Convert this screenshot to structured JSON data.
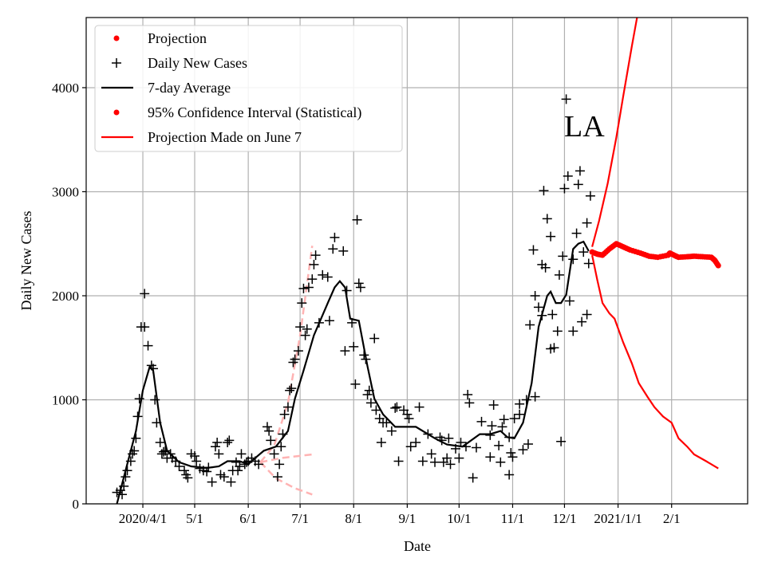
{
  "chart_data": {
    "type": "line",
    "title": "",
    "annotation": "LA",
    "xlabel": "Date",
    "ylabel": "Daily New Cases",
    "x_units": "days since 2020/4/1",
    "xlim": [
      -32.8,
      350
    ],
    "ylim": [
      0,
      4674
    ],
    "grid": true,
    "legend_placement": "top-left",
    "x_ticks": [
      {
        "value": 0,
        "label": "2020/4/1"
      },
      {
        "value": 30,
        "label": "5/1"
      },
      {
        "value": 61,
        "label": "6/1"
      },
      {
        "value": 91,
        "label": "7/1"
      },
      {
        "value": 122,
        "label": "8/1"
      },
      {
        "value": 153,
        "label": "9/1"
      },
      {
        "value": 183,
        "label": "10/1"
      },
      {
        "value": 214,
        "label": "11/1"
      },
      {
        "value": 244,
        "label": "12/1"
      },
      {
        "value": 275,
        "label": "2021/1/1"
      },
      {
        "value": 306,
        "label": "2/1"
      }
    ],
    "y_ticks": [
      {
        "value": 0,
        "label": "0"
      },
      {
        "value": 1000,
        "label": "1000"
      },
      {
        "value": 2000,
        "label": "2000"
      },
      {
        "value": 3000,
        "label": "3000"
      },
      {
        "value": 4000,
        "label": "4000"
      }
    ],
    "legend": [
      {
        "label": "Projection",
        "kind": "dot",
        "color": "#ff0000"
      },
      {
        "label": "Daily New Cases",
        "kind": "plus",
        "color": "#000000"
      },
      {
        "label": "7-day Average",
        "kind": "line",
        "color": "#000000"
      },
      {
        "label": "95% Confidence Interval (Statistical)",
        "kind": "dot",
        "color": "#ff0000"
      },
      {
        "label": "Projection Made on June 7",
        "kind": "line",
        "color": "#ff0000"
      }
    ],
    "colors": {
      "cases": "#000000",
      "average": "#000000",
      "projection": "#ff0000",
      "june7": "#ffb3b3",
      "grid": "#b0b0b0"
    },
    "daily_new_cases": [
      [
        -15,
        110
      ],
      [
        -13,
        130
      ],
      [
        -12,
        90
      ],
      [
        -11,
        170
      ],
      [
        -10,
        260
      ],
      [
        -9,
        320
      ],
      [
        -7,
        410
      ],
      [
        -6,
        480
      ],
      [
        -5,
        510
      ],
      [
        -4,
        630
      ],
      [
        -3,
        840
      ],
      [
        -2,
        1010
      ],
      [
        -1,
        1700
      ],
      [
        1,
        1700
      ],
      [
        1,
        2020
      ],
      [
        3,
        1520
      ],
      [
        5,
        1330
      ],
      [
        6,
        1300
      ],
      [
        7,
        1000
      ],
      [
        8,
        780
      ],
      [
        10,
        590
      ],
      [
        11,
        480
      ],
      [
        12,
        500
      ],
      [
        13,
        510
      ],
      [
        14,
        440
      ],
      [
        16,
        480
      ],
      [
        17,
        440
      ],
      [
        19,
        410
      ],
      [
        21,
        360
      ],
      [
        24,
        320
      ],
      [
        25,
        280
      ],
      [
        26,
        250
      ],
      [
        28,
        480
      ],
      [
        30,
        460
      ],
      [
        31,
        410
      ],
      [
        33,
        340
      ],
      [
        35,
        320
      ],
      [
        37,
        310
      ],
      [
        38,
        350
      ],
      [
        40,
        210
      ],
      [
        42,
        550
      ],
      [
        43,
        590
      ],
      [
        44,
        480
      ],
      [
        45,
        280
      ],
      [
        47,
        260
      ],
      [
        49,
        590
      ],
      [
        50,
        610
      ],
      [
        51,
        210
      ],
      [
        52,
        320
      ],
      [
        54,
        400
      ],
      [
        55,
        320
      ],
      [
        56,
        360
      ],
      [
        57,
        480
      ],
      [
        59,
        380
      ],
      [
        60,
        400
      ],
      [
        61,
        410
      ],
      [
        63,
        440
      ],
      [
        65,
        410
      ],
      [
        67,
        380
      ],
      [
        72,
        740
      ],
      [
        73,
        700
      ],
      [
        74,
        610
      ],
      [
        76,
        480
      ],
      [
        78,
        260
      ],
      [
        79,
        380
      ],
      [
        80,
        550
      ],
      [
        81,
        670
      ],
      [
        82,
        860
      ],
      [
        84,
        930
      ],
      [
        85,
        1090
      ],
      [
        86,
        1110
      ],
      [
        87,
        1360
      ],
      [
        88,
        1390
      ],
      [
        90,
        1470
      ],
      [
        91,
        1700
      ],
      [
        92,
        1930
      ],
      [
        93,
        2070
      ],
      [
        94,
        1620
      ],
      [
        95,
        1680
      ],
      [
        96,
        2080
      ],
      [
        98,
        2160
      ],
      [
        99,
        2300
      ],
      [
        100,
        2390
      ],
      [
        102,
        1740
      ],
      [
        104,
        2200
      ],
      [
        107,
        2180
      ],
      [
        108,
        1760
      ],
      [
        110,
        2450
      ],
      [
        111,
        2560
      ],
      [
        116,
        2430
      ],
      [
        117,
        1470
      ],
      [
        118,
        2050
      ],
      [
        121,
        1740
      ],
      [
        122,
        1510
      ],
      [
        123,
        1150
      ],
      [
        124,
        2730
      ],
      [
        125,
        2120
      ],
      [
        126,
        2080
      ],
      [
        128,
        1430
      ],
      [
        129,
        1390
      ],
      [
        130,
        1050
      ],
      [
        131,
        1090
      ],
      [
        132,
        970
      ],
      [
        134,
        1590
      ],
      [
        135,
        900
      ],
      [
        137,
        820
      ],
      [
        138,
        590
      ],
      [
        139,
        780
      ],
      [
        141,
        780
      ],
      [
        144,
        700
      ],
      [
        146,
        920
      ],
      [
        147,
        930
      ],
      [
        148,
        410
      ],
      [
        151,
        900
      ],
      [
        153,
        860
      ],
      [
        154,
        820
      ],
      [
        155,
        550
      ],
      [
        158,
        590
      ],
      [
        160,
        930
      ],
      [
        162,
        410
      ],
      [
        165,
        670
      ],
      [
        167,
        480
      ],
      [
        169,
        400
      ],
      [
        172,
        640
      ],
      [
        173,
        610
      ],
      [
        174,
        400
      ],
      [
        176,
        440
      ],
      [
        177,
        630
      ],
      [
        178,
        380
      ],
      [
        181,
        530
      ],
      [
        183,
        440
      ],
      [
        184,
        590
      ],
      [
        187,
        550
      ],
      [
        188,
        1050
      ],
      [
        189,
        970
      ],
      [
        191,
        250
      ],
      [
        193,
        540
      ],
      [
        196,
        790
      ],
      [
        201,
        450
      ],
      [
        201,
        660
      ],
      [
        202,
        750
      ],
      [
        203,
        950
      ],
      [
        206,
        560
      ],
      [
        207,
        400
      ],
      [
        208,
        740
      ],
      [
        209,
        810
      ],
      [
        212,
        280
      ],
      [
        212,
        640
      ],
      [
        213,
        490
      ],
      [
        214,
        450
      ],
      [
        215,
        820
      ],
      [
        218,
        960
      ],
      [
        218,
        860
      ],
      [
        220,
        520
      ],
      [
        222,
        1000
      ],
      [
        223,
        575
      ],
      [
        224,
        1720
      ],
      [
        226,
        2440
      ],
      [
        227,
        2000
      ],
      [
        227,
        1030
      ],
      [
        229,
        1890
      ],
      [
        231,
        2300
      ],
      [
        231,
        1810
      ],
      [
        232,
        3010
      ],
      [
        233,
        2270
      ],
      [
        234,
        2740
      ],
      [
        236,
        2570
      ],
      [
        236,
        1490
      ],
      [
        237,
        1820
      ],
      [
        238,
        1500
      ],
      [
        240,
        1660
      ],
      [
        241,
        2200
      ],
      [
        242,
        600
      ],
      [
        243,
        2380
      ],
      [
        244,
        3030
      ],
      [
        245,
        3890
      ],
      [
        246,
        3150
      ],
      [
        247,
        1950
      ],
      [
        249,
        2350
      ],
      [
        249,
        1660
      ],
      [
        251,
        2600
      ],
      [
        252,
        3070
      ],
      [
        253,
        3200
      ],
      [
        254,
        1750
      ],
      [
        255,
        2420
      ],
      [
        257,
        2700
      ],
      [
        257,
        1820
      ],
      [
        258,
        2310
      ],
      [
        259,
        2960
      ]
    ],
    "seven_day_average": [
      [
        -15,
        0
      ],
      [
        -10,
        320
      ],
      [
        -4,
        700
      ],
      [
        0,
        1090
      ],
      [
        4,
        1320
      ],
      [
        6,
        1280
      ],
      [
        10,
        780
      ],
      [
        14,
        510
      ],
      [
        21,
        400
      ],
      [
        28,
        360
      ],
      [
        37,
        345
      ],
      [
        44,
        360
      ],
      [
        49,
        410
      ],
      [
        56,
        410
      ],
      [
        61,
        380
      ],
      [
        65,
        440
      ],
      [
        70,
        510
      ],
      [
        77,
        550
      ],
      [
        84,
        700
      ],
      [
        88,
        1010
      ],
      [
        93,
        1280
      ],
      [
        99,
        1620
      ],
      [
        107,
        1930
      ],
      [
        111,
        2080
      ],
      [
        114,
        2140
      ],
      [
        117,
        2080
      ],
      [
        120,
        1780
      ],
      [
        125,
        1760
      ],
      [
        130,
        1320
      ],
      [
        134,
        1010
      ],
      [
        139,
        860
      ],
      [
        146,
        740
      ],
      [
        158,
        740
      ],
      [
        169,
        630
      ],
      [
        176,
        570
      ],
      [
        185,
        550
      ],
      [
        195,
        670
      ],
      [
        201,
        670
      ],
      [
        207,
        700
      ],
      [
        211,
        640
      ],
      [
        215,
        630
      ],
      [
        220,
        780
      ],
      [
        225,
        1160
      ],
      [
        229,
        1700
      ],
      [
        234,
        2000
      ],
      [
        236,
        2040
      ],
      [
        239,
        1930
      ],
      [
        242,
        1930
      ],
      [
        245,
        2010
      ],
      [
        249,
        2450
      ],
      [
        252,
        2500
      ],
      [
        255,
        2520
      ],
      [
        258,
        2430
      ]
    ],
    "projection": [
      [
        260,
        2420
      ],
      [
        263,
        2400
      ],
      [
        266,
        2390
      ],
      [
        270,
        2450
      ],
      [
        274,
        2500
      ],
      [
        278,
        2470
      ],
      [
        282,
        2440
      ],
      [
        288,
        2410
      ],
      [
        293,
        2380
      ],
      [
        298,
        2370
      ],
      [
        304,
        2390
      ],
      [
        305,
        2410
      ],
      [
        308,
        2385
      ],
      [
        310,
        2370
      ],
      [
        315,
        2375
      ],
      [
        319,
        2380
      ],
      [
        324,
        2375
      ],
      [
        329,
        2370
      ],
      [
        331,
        2340
      ],
      [
        333,
        2290
      ]
    ],
    "ci_upper": [
      [
        260,
        2470
      ],
      [
        264,
        2720
      ],
      [
        269,
        3080
      ],
      [
        274,
        3520
      ],
      [
        278,
        3920
      ],
      [
        283,
        4400
      ],
      [
        286,
        4674
      ],
      [
        289,
        5000
      ]
    ],
    "ci_lower": [
      [
        260,
        2390
      ],
      [
        263,
        2150
      ],
      [
        266,
        1930
      ],
      [
        270,
        1830
      ],
      [
        273,
        1780
      ],
      [
        278,
        1550
      ],
      [
        283,
        1350
      ],
      [
        287,
        1160
      ],
      [
        292,
        1030
      ],
      [
        296,
        930
      ],
      [
        301,
        840
      ],
      [
        306,
        780
      ],
      [
        310,
        630
      ],
      [
        315,
        550
      ],
      [
        319,
        475
      ],
      [
        326,
        410
      ],
      [
        333,
        340
      ]
    ],
    "june7_projection": [
      [
        [
          68,
          400
        ],
        [
          76,
          560
        ],
        [
          84,
          970
        ],
        [
          91,
          1620
        ],
        [
          98,
          2480
        ]
      ],
      [
        [
          68,
          400
        ],
        [
          80,
          440
        ],
        [
          98,
          475
        ]
      ],
      [
        [
          68,
          400
        ],
        [
          77,
          245
        ],
        [
          88,
          150
        ],
        [
          98,
          90
        ]
      ]
    ]
  }
}
